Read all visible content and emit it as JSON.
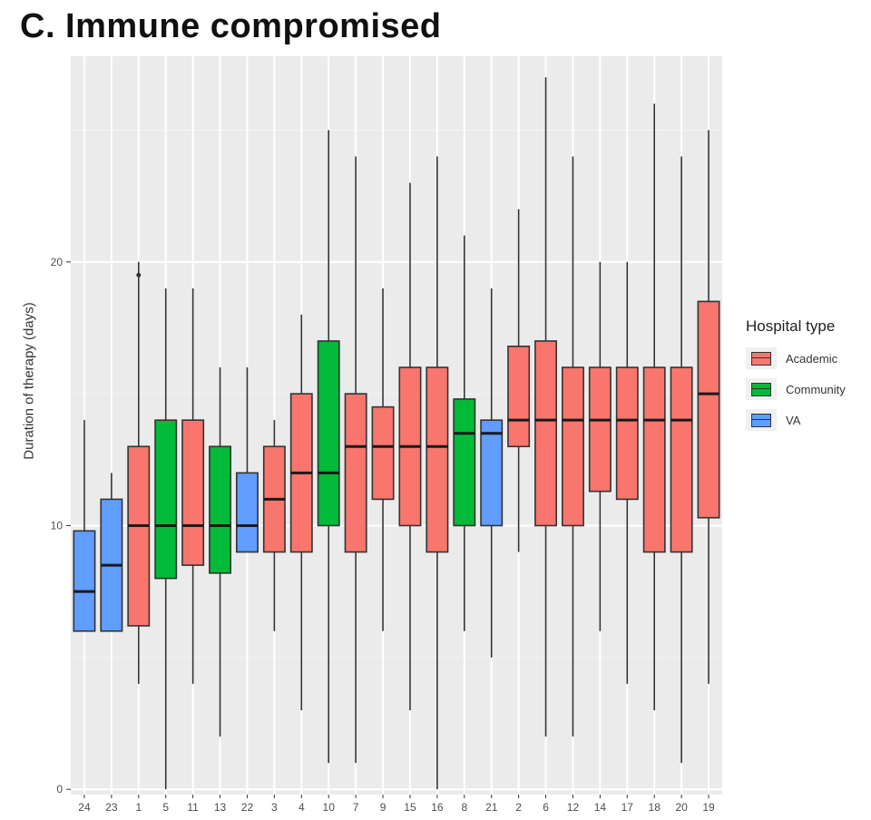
{
  "page": {
    "title": "C. Immune compromised"
  },
  "chart_data": {
    "type": "box",
    "title": "C. Immune compromised",
    "xlabel": "",
    "ylabel": "Duration of therapy (days)",
    "ylim": [
      -0.2,
      27.8
    ],
    "yticks": [
      0,
      10,
      20
    ],
    "grid": true,
    "legend_title": "Hospital type",
    "legend_position": "right",
    "legend": [
      {
        "label": "Academic",
        "color": "#F8766D"
      },
      {
        "label": "Community",
        "color": "#00BA38"
      },
      {
        "label": "VA",
        "color": "#619CFF"
      }
    ],
    "categories": [
      "24",
      "23",
      "1",
      "5",
      "11",
      "13",
      "22",
      "3",
      "4",
      "10",
      "7",
      "9",
      "15",
      "16",
      "8",
      "21",
      "2",
      "6",
      "12",
      "14",
      "17",
      "18",
      "20",
      "19"
    ],
    "boxes": [
      {
        "label": "24",
        "type": "VA",
        "min": 6,
        "q1": 6,
        "median": 7.5,
        "q3": 9.8,
        "max": 14
      },
      {
        "label": "23",
        "type": "VA",
        "min": 6,
        "q1": 6,
        "median": 8.5,
        "q3": 11,
        "max": 12
      },
      {
        "label": "1",
        "type": "Academic",
        "min": 4,
        "q1": 6.2,
        "median": 10,
        "q3": 13,
        "max": 20,
        "outliers": [
          19.5
        ]
      },
      {
        "label": "5",
        "type": "Community",
        "min": 0,
        "q1": 8,
        "median": 10,
        "q3": 14,
        "max": 19
      },
      {
        "label": "11",
        "type": "Academic",
        "min": 4,
        "q1": 8.5,
        "median": 10,
        "q3": 14,
        "max": 19
      },
      {
        "label": "13",
        "type": "Community",
        "min": 2,
        "q1": 8.2,
        "median": 10,
        "q3": 13,
        "max": 16
      },
      {
        "label": "22",
        "type": "VA",
        "min": 9,
        "q1": 9,
        "median": 10,
        "q3": 12,
        "max": 16
      },
      {
        "label": "3",
        "type": "Academic",
        "min": 6,
        "q1": 9,
        "median": 11,
        "q3": 13,
        "max": 14
      },
      {
        "label": "4",
        "type": "Academic",
        "min": 3,
        "q1": 9,
        "median": 12,
        "q3": 15,
        "max": 18
      },
      {
        "label": "10",
        "type": "Community",
        "min": 1,
        "q1": 10,
        "median": 12,
        "q3": 17,
        "max": 25
      },
      {
        "label": "7",
        "type": "Academic",
        "min": 1,
        "q1": 9,
        "median": 13,
        "q3": 15,
        "max": 24
      },
      {
        "label": "9",
        "type": "Academic",
        "min": 6,
        "q1": 11,
        "median": 13,
        "q3": 14.5,
        "max": 19
      },
      {
        "label": "15",
        "type": "Academic",
        "min": 3,
        "q1": 10,
        "median": 13,
        "q3": 16,
        "max": 23
      },
      {
        "label": "16",
        "type": "Academic",
        "min": 0,
        "q1": 9,
        "median": 13,
        "q3": 16,
        "max": 24
      },
      {
        "label": "8",
        "type": "Community",
        "min": 6,
        "q1": 10,
        "median": 13.5,
        "q3": 14.8,
        "max": 21
      },
      {
        "label": "21",
        "type": "VA",
        "min": 5,
        "q1": 10,
        "median": 13.5,
        "q3": 14,
        "max": 19
      },
      {
        "label": "2",
        "type": "Academic",
        "min": 9,
        "q1": 13,
        "median": 14,
        "q3": 16.8,
        "max": 22
      },
      {
        "label": "6",
        "type": "Academic",
        "min": 2,
        "q1": 10,
        "median": 14,
        "q3": 17,
        "max": 27
      },
      {
        "label": "12",
        "type": "Academic",
        "min": 2,
        "q1": 10,
        "median": 14,
        "q3": 16,
        "max": 24
      },
      {
        "label": "14",
        "type": "Academic",
        "min": 6,
        "q1": 11.3,
        "median": 14,
        "q3": 16,
        "max": 20
      },
      {
        "label": "17",
        "type": "Academic",
        "min": 4,
        "q1": 11,
        "median": 14,
        "q3": 16,
        "max": 20
      },
      {
        "label": "18",
        "type": "Academic",
        "min": 3,
        "q1": 9,
        "median": 14,
        "q3": 16,
        "max": 26
      },
      {
        "label": "20",
        "type": "Academic",
        "min": 1,
        "q1": 9,
        "median": 14,
        "q3": 16,
        "max": 24
      },
      {
        "label": "19",
        "type": "Academic",
        "min": 4,
        "q1": 10.3,
        "median": 15,
        "q3": 18.5,
        "max": 25
      }
    ]
  }
}
